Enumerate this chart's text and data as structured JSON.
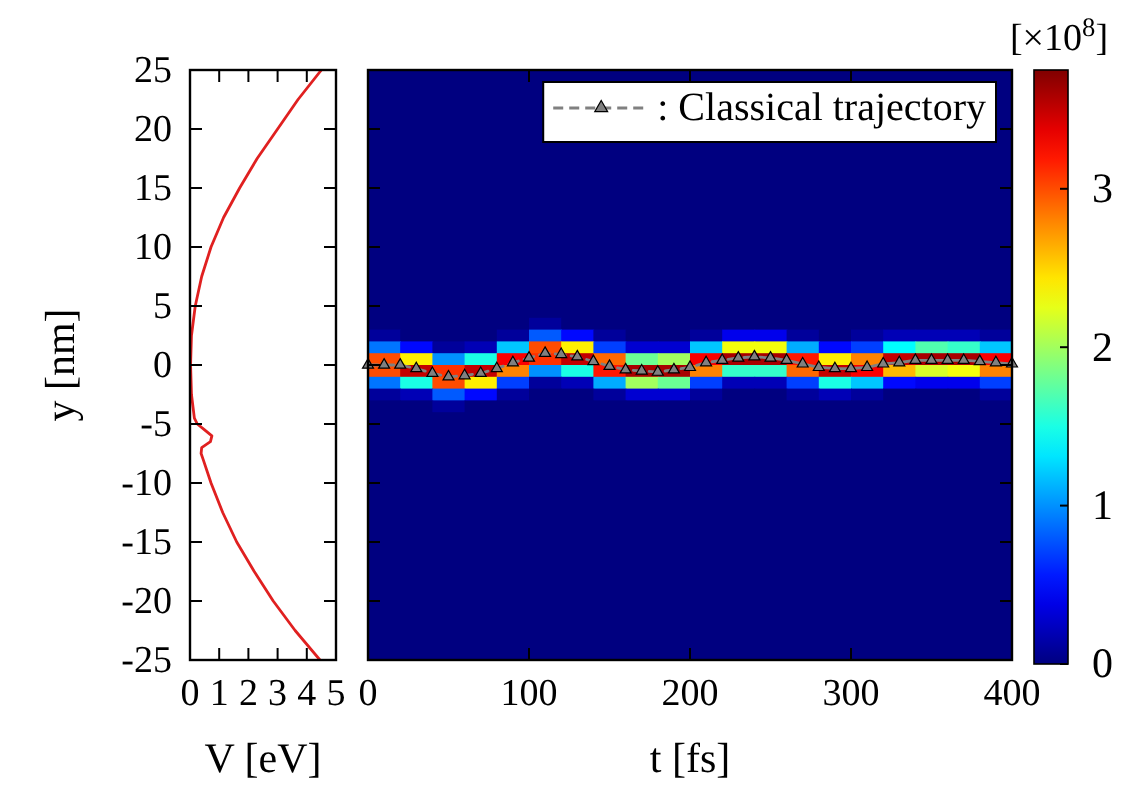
{
  "chart_data": [
    {
      "type": "line",
      "xlabel": "V [eV]",
      "ylabel": "y [nm]",
      "xlim": [
        0,
        5
      ],
      "xticks": [
        0,
        1,
        2,
        3,
        4,
        5
      ],
      "ylim": [
        -25,
        25
      ],
      "yticks": [
        -25,
        -20,
        -15,
        -10,
        -5,
        0,
        5,
        10,
        15,
        20,
        25
      ],
      "series": [
        {
          "color": "#e02020",
          "x": [
            4.5,
            3.7,
            3.0,
            2.3,
            1.7,
            1.15,
            0.72,
            0.4,
            0.18,
            0.05,
            0.02,
            0.05,
            0.15,
            0.25,
            0.5,
            0.75,
            0.7,
            0.4,
            0.38,
            0.45,
            0.72,
            1.12,
            1.6,
            2.2,
            2.85,
            3.6,
            4.45
          ],
          "values": [
            25,
            22.5,
            20,
            17.5,
            15,
            12.5,
            10,
            7.5,
            5,
            2.5,
            0,
            -2.5,
            -4.5,
            -5,
            -5.5,
            -6,
            -6.5,
            -7,
            -7.5,
            -8,
            -10,
            -12.5,
            -15,
            -17.5,
            -20,
            -22.5,
            -25
          ]
        }
      ]
    },
    {
      "type": "heatmap",
      "xlabel": "t [fs]",
      "xlim": [
        0,
        400
      ],
      "xticks": [
        0,
        100,
        200,
        300,
        400
      ],
      "ylim": [
        -25,
        25
      ],
      "yticks": [
        -25,
        -20,
        -15,
        -10,
        -5,
        0,
        5,
        10,
        15,
        20,
        25
      ],
      "tick_labels": "x",
      "clabel": "[×10$^{8}$]",
      "clim": [
        0,
        3.75
      ],
      "cticks": [
        0,
        1,
        2,
        3
      ],
      "legend": "top right",
      "x": [
        10,
        30,
        50,
        70,
        90,
        110,
        130,
        150,
        170,
        190,
        210,
        230,
        250,
        270,
        290,
        310,
        330,
        350,
        370,
        390
      ],
      "y": [
        24.5,
        23.5,
        22.5,
        21.5,
        20.5,
        19.5,
        18.5,
        17.5,
        16.5,
        15.5,
        14.5,
        13.5,
        12.5,
        11.5,
        10.5,
        9.5,
        8.5,
        7.5,
        6.5,
        5.5,
        4.5,
        3.5,
        2.5,
        1.5,
        0.5,
        -0.5,
        -1.5,
        -2.5,
        -3.5,
        -4.5,
        -5.5,
        -6.5,
        -7.5,
        -8.5,
        -9.5,
        -10.5,
        -11.5,
        -12.5,
        -13.5,
        -14.5,
        -15.5,
        -16.5,
        -17.5,
        -18.5,
        -19.5,
        -20.5,
        -21.5,
        -22.5,
        -23.5,
        -24.5
      ],
      "cells": [
        [
          0,
          0,
          0,
          0,
          0,
          0,
          0,
          0,
          0,
          0,
          0,
          0,
          0,
          0,
          0,
          0,
          0,
          0,
          0,
          0
        ],
        [
          0,
          0,
          0,
          0,
          0,
          null,
          null,
          null,
          null,
          null,
          null,
          null,
          null,
          null,
          null,
          null,
          null,
          null,
          null,
          0
        ],
        [
          0,
          0,
          0,
          0,
          0,
          null,
          null,
          null,
          null,
          null,
          null,
          null,
          null,
          null,
          null,
          null,
          null,
          null,
          null,
          0
        ],
        [
          0,
          0,
          0,
          0,
          0,
          null,
          null,
          null,
          null,
          null,
          null,
          null,
          null,
          null,
          null,
          null,
          null,
          null,
          null,
          0
        ],
        [
          0,
          0,
          0,
          0,
          0,
          null,
          null,
          null,
          null,
          null,
          null,
          null,
          null,
          null,
          null,
          null,
          null,
          null,
          null,
          0
        ],
        [
          0,
          0,
          0,
          0,
          0,
          null,
          null,
          null,
          null,
          null,
          null,
          null,
          null,
          null,
          null,
          null,
          null,
          null,
          null,
          0
        ],
        [
          0,
          0,
          0,
          0,
          0,
          null,
          null,
          null,
          null,
          null,
          null,
          null,
          null,
          null,
          null,
          null,
          null,
          null,
          null,
          0
        ],
        [
          0,
          0,
          0,
          0,
          0,
          0,
          0,
          0,
          0,
          0,
          0,
          0,
          0,
          0,
          0,
          0,
          0,
          0,
          0,
          0
        ],
        [
          0,
          0,
          0,
          0,
          0,
          0,
          0,
          0,
          0,
          0,
          0,
          0,
          0,
          0,
          0,
          0,
          0,
          0,
          0,
          0
        ],
        [
          0,
          0,
          0,
          0,
          0,
          0,
          0,
          0,
          0,
          0,
          0,
          0,
          0,
          0,
          0,
          0,
          0,
          0,
          0,
          0
        ],
        [
          0,
          0,
          0,
          0,
          0,
          0,
          0,
          0,
          0,
          0,
          0,
          0,
          0,
          0,
          0,
          0,
          0,
          0,
          0,
          0
        ],
        [
          0,
          0,
          0,
          0,
          0,
          0,
          0,
          0,
          0,
          0,
          0,
          0,
          0,
          0,
          0,
          0,
          0,
          0,
          0,
          0
        ],
        [
          0,
          0,
          0,
          0,
          0,
          0,
          0,
          0,
          0,
          0,
          0,
          0,
          0,
          0,
          0,
          0,
          0,
          0,
          0,
          0
        ],
        [
          0,
          0,
          0,
          0,
          0,
          0,
          0,
          0,
          0,
          0,
          0,
          0,
          0,
          0,
          0,
          0,
          0,
          0,
          0,
          0
        ],
        [
          0,
          0,
          0,
          0,
          0,
          0,
          0,
          0,
          0,
          0,
          0,
          0,
          0,
          0,
          0,
          0,
          0,
          0,
          0,
          0
        ],
        [
          0,
          0,
          0,
          0,
          0,
          0,
          0,
          0,
          0,
          0,
          0,
          0,
          0,
          0,
          0,
          0,
          0,
          0,
          0,
          0
        ],
        [
          0,
          0,
          0,
          0,
          0,
          0,
          0,
          0,
          0,
          0,
          0,
          0,
          0,
          0,
          0,
          0,
          0,
          0,
          0,
          0
        ],
        [
          0,
          0,
          0,
          0,
          0,
          0,
          0,
          0,
          0,
          0,
          0,
          0,
          0,
          0,
          0,
          0,
          0,
          0,
          0,
          0
        ],
        [
          0,
          0,
          0,
          0,
          0,
          0,
          0,
          0,
          0,
          0,
          0,
          0,
          0,
          0,
          0,
          0,
          0,
          0,
          0,
          0
        ],
        [
          0,
          0,
          0,
          0,
          0,
          0,
          0,
          0,
          0,
          0,
          0,
          0,
          0,
          0,
          0,
          0,
          0,
          0,
          0,
          0
        ],
        [
          0,
          0,
          0,
          0,
          0,
          0,
          0,
          0,
          0,
          0,
          0,
          0,
          0,
          0,
          0,
          0,
          0,
          0,
          0,
          0
        ],
        [
          0,
          0,
          0,
          0,
          0,
          0.1,
          0,
          0,
          0,
          0,
          0,
          0,
          0,
          0,
          0,
          0,
          0,
          0,
          0,
          0
        ],
        [
          0.1,
          0,
          0,
          0,
          0.1,
          0.8,
          0.5,
          0.1,
          0,
          0,
          0.1,
          0.4,
          0.4,
          0.1,
          0,
          0.1,
          0.2,
          0.2,
          0.2,
          0.1
        ],
        [
          0.9,
          0.5,
          0.1,
          0.2,
          1.2,
          3.0,
          2.4,
          0.7,
          0.3,
          0.3,
          1.2,
          2.3,
          2.3,
          1.1,
          0.5,
          0.7,
          1.4,
          1.7,
          1.6,
          1.2
        ],
        [
          3.0,
          2.4,
          1.0,
          1.5,
          3.3,
          3.1,
          3.5,
          2.9,
          1.8,
          2.0,
          3.3,
          3.6,
          3.6,
          3.2,
          2.4,
          2.8,
          3.5,
          3.6,
          3.6,
          3.3
        ],
        [
          3.0,
          3.5,
          3.1,
          3.5,
          2.8,
          1.0,
          1.5,
          3.2,
          3.6,
          3.6,
          2.8,
          1.6,
          1.6,
          2.9,
          3.5,
          3.3,
          2.6,
          2.2,
          2.3,
          2.8
        ],
        [
          0.9,
          1.5,
          3.0,
          2.4,
          0.7,
          0.1,
          0.2,
          1.1,
          2.0,
          1.8,
          0.7,
          0.2,
          0.2,
          0.7,
          1.5,
          1.2,
          0.5,
          0.4,
          0.4,
          0.7
        ],
        [
          0.1,
          0.2,
          0.8,
          0.5,
          0.1,
          0,
          0,
          0.1,
          0.3,
          0.3,
          0.1,
          0,
          0,
          0.1,
          0.2,
          0.1,
          0,
          0,
          0,
          0.1
        ],
        [
          0,
          0,
          0.1,
          0,
          0,
          0,
          0,
          0,
          0,
          0,
          0,
          0,
          0,
          0,
          0,
          0,
          0,
          0,
          0,
          0
        ],
        [
          0,
          0,
          0,
          0,
          0,
          0,
          0,
          0,
          0,
          0,
          0,
          0,
          0,
          0,
          0,
          0,
          0,
          0,
          0,
          0
        ],
        [
          0,
          0,
          0,
          0,
          0,
          0,
          0,
          0,
          0,
          0,
          0,
          0,
          0,
          0,
          0,
          0,
          0,
          0,
          0,
          0
        ],
        [
          0,
          0,
          0,
          0,
          0,
          0,
          0,
          0,
          0,
          0,
          0,
          0,
          0,
          0,
          0,
          0,
          0,
          0,
          0,
          0
        ],
        [
          0,
          0,
          0,
          0,
          0,
          0,
          0,
          0,
          0,
          0,
          0,
          0,
          0,
          0,
          0,
          0,
          0,
          0,
          0,
          0
        ],
        [
          0,
          0,
          0,
          0,
          0,
          0,
          0,
          0,
          0,
          0,
          0,
          0,
          0,
          0,
          0,
          0,
          0,
          0,
          0,
          0
        ],
        [
          0,
          0,
          0,
          0,
          0,
          0,
          0,
          0,
          0,
          0,
          0,
          0,
          0,
          0,
          0,
          0,
          0,
          0,
          0,
          0
        ],
        [
          0,
          0,
          0,
          0,
          0,
          0,
          0,
          0,
          0,
          0,
          0,
          0,
          0,
          0,
          0,
          0,
          0,
          0,
          0,
          0
        ],
        [
          0,
          0,
          0,
          0,
          0,
          0,
          0,
          0,
          0,
          0,
          0,
          0,
          0,
          0,
          0,
          0,
          0,
          0,
          0,
          0
        ],
        [
          0,
          0,
          0,
          0,
          0,
          0,
          0,
          0,
          0,
          0,
          0,
          0,
          0,
          0,
          0,
          0,
          0,
          0,
          0,
          0
        ],
        [
          0,
          0,
          0,
          0,
          0,
          0,
          0,
          0,
          0,
          0,
          0,
          0,
          0,
          0,
          0,
          0,
          0,
          0,
          0,
          0
        ],
        [
          0,
          0,
          0,
          0,
          0,
          0,
          0,
          0,
          0,
          0,
          0,
          0,
          0,
          0,
          0,
          0,
          0,
          0,
          0,
          0
        ],
        [
          0,
          0,
          0,
          0,
          0,
          0,
          0,
          0,
          0,
          0,
          0,
          0,
          0,
          0,
          0,
          0,
          0,
          0,
          0,
          0
        ],
        [
          0,
          0,
          0,
          0,
          0,
          0,
          0,
          0,
          0,
          0,
          0,
          0,
          0,
          0,
          0,
          0,
          0,
          0,
          0,
          0
        ],
        [
          0,
          0,
          0,
          0,
          0,
          0,
          0,
          0,
          0,
          0,
          0,
          0,
          0,
          0,
          0,
          0,
          0,
          0,
          0,
          0
        ],
        [
          0,
          0,
          0,
          0,
          0,
          0,
          0,
          0,
          0,
          0,
          0,
          0,
          0,
          0,
          0,
          0,
          0,
          0,
          0,
          0
        ],
        [
          0,
          0,
          0,
          0,
          0,
          0,
          0,
          0,
          0,
          0,
          0,
          0,
          0,
          0,
          0,
          0,
          0,
          0,
          0,
          0
        ],
        [
          0,
          0,
          0,
          0,
          0,
          0,
          0,
          0,
          0,
          0,
          0,
          0,
          0,
          0,
          0,
          0,
          0,
          0,
          0,
          0
        ],
        [
          0,
          0,
          0,
          0,
          0,
          0,
          0,
          0,
          0,
          0,
          0,
          0,
          0,
          0,
          0,
          0,
          0,
          0,
          0,
          0
        ],
        [
          0,
          0,
          0,
          0,
          0,
          0,
          0,
          0,
          0,
          0,
          0,
          0,
          0,
          0,
          0,
          0,
          0,
          0,
          0,
          0
        ],
        [
          0,
          0,
          0,
          0,
          0,
          0,
          0,
          0,
          0,
          0,
          0,
          0,
          0,
          0,
          0,
          0,
          0,
          0,
          0,
          0
        ],
        [
          0,
          0,
          0,
          0,
          0,
          0,
          0,
          0,
          0,
          0,
          0,
          0,
          0,
          0,
          0,
          0,
          0,
          0,
          0,
          0
        ]
      ],
      "series": [
        {
          "type": "line",
          "name": ": Classical trajectory",
          "color": "#808080",
          "marker": "triangle",
          "line_style": "dashed",
          "x": [
            0,
            10,
            20,
            30,
            40,
            50,
            60,
            70,
            80,
            90,
            100,
            110,
            120,
            130,
            140,
            150,
            160,
            170,
            180,
            190,
            200,
            210,
            220,
            230,
            240,
            250,
            260,
            270,
            280,
            290,
            300,
            310,
            320,
            330,
            340,
            350,
            360,
            370,
            380,
            390,
            400
          ],
          "values": [
            0,
            0,
            0,
            -0.3,
            -0.7,
            -1.0,
            -0.9,
            -0.7,
            -0.3,
            0.2,
            0.6,
            1.0,
            0.9,
            0.7,
            0.3,
            -0.1,
            -0.4,
            -0.5,
            -0.6,
            -0.4,
            -0.2,
            0.2,
            0.4,
            0.6,
            0.7,
            0.6,
            0.4,
            0.1,
            -0.2,
            -0.3,
            -0.3,
            -0.2,
            0.1,
            0.2,
            0.4,
            0.4,
            0.4,
            0.4,
            0.3,
            0.2,
            0.1
          ]
        }
      ]
    }
  ]
}
